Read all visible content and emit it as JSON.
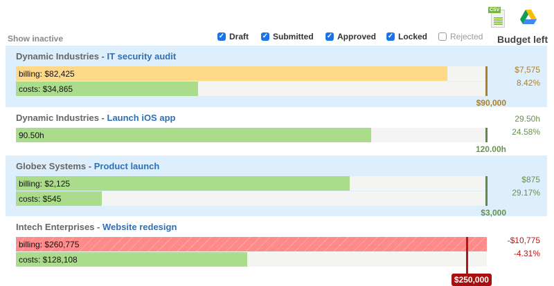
{
  "toolbar": {
    "csv_icon": "csv-spreadsheet-icon",
    "drive_icon": "google-drive-icon",
    "csv_text": "CSV"
  },
  "filters": {
    "show_inactive": "Show inactive",
    "items": [
      {
        "label": "Draft",
        "checked": true
      },
      {
        "label": "Submitted",
        "checked": true
      },
      {
        "label": "Approved",
        "checked": true
      },
      {
        "label": "Locked",
        "checked": true
      },
      {
        "label": "Rejected",
        "checked": false
      }
    ]
  },
  "budget_left_header": "Budget left",
  "colors": {
    "billing": "#ffd98a",
    "costs": "#abdc8b",
    "over": "#ff8a8a",
    "green_text": "#6a8f52",
    "gold_text": "#b07f24",
    "red_text": "#b01818"
  },
  "projects": [
    {
      "client": "Dynamic Industries",
      "sep": " - ",
      "name": "IT security audit",
      "bars": [
        {
          "label": "billing: $82,425",
          "value": 82425,
          "type": "billing"
        },
        {
          "label": "costs: $34,865",
          "value": 34865,
          "type": "costs"
        }
      ],
      "budget": 90000,
      "budget_label": "$90,000",
      "left": "$7,575",
      "left_pct": "8.42%",
      "status": "warning"
    },
    {
      "client": "Dynamic Industries",
      "sep": " - ",
      "name": "Launch iOS app",
      "bars": [
        {
          "label": "90.50h",
          "value": 90.5,
          "type": "costs"
        }
      ],
      "budget": 120,
      "budget_label": "120.00h",
      "left": "29.50h",
      "left_pct": "24.58%",
      "status": "ok"
    },
    {
      "client": "Globex Systems",
      "sep": " - ",
      "name": "Product launch",
      "bars": [
        {
          "label": "billing: $2,125",
          "value": 2125,
          "type": "costs"
        },
        {
          "label": "costs: $545",
          "value": 545,
          "type": "costs"
        }
      ],
      "budget": 3000,
      "budget_label": "$3,000",
      "left": "$875",
      "left_pct": "29.17%",
      "status": "ok"
    },
    {
      "client": "Intech Enterprises",
      "sep": " - ",
      "name": "Website redesign",
      "bars": [
        {
          "label": "billing: $260,775",
          "value": 260775,
          "type": "over"
        },
        {
          "label": "costs: $128,108",
          "value": 128108,
          "type": "costs"
        }
      ],
      "budget": 250000,
      "budget_label": "$250,000",
      "left": "-$10,775",
      "left_pct": "-4.31%",
      "status": "over"
    }
  ]
}
